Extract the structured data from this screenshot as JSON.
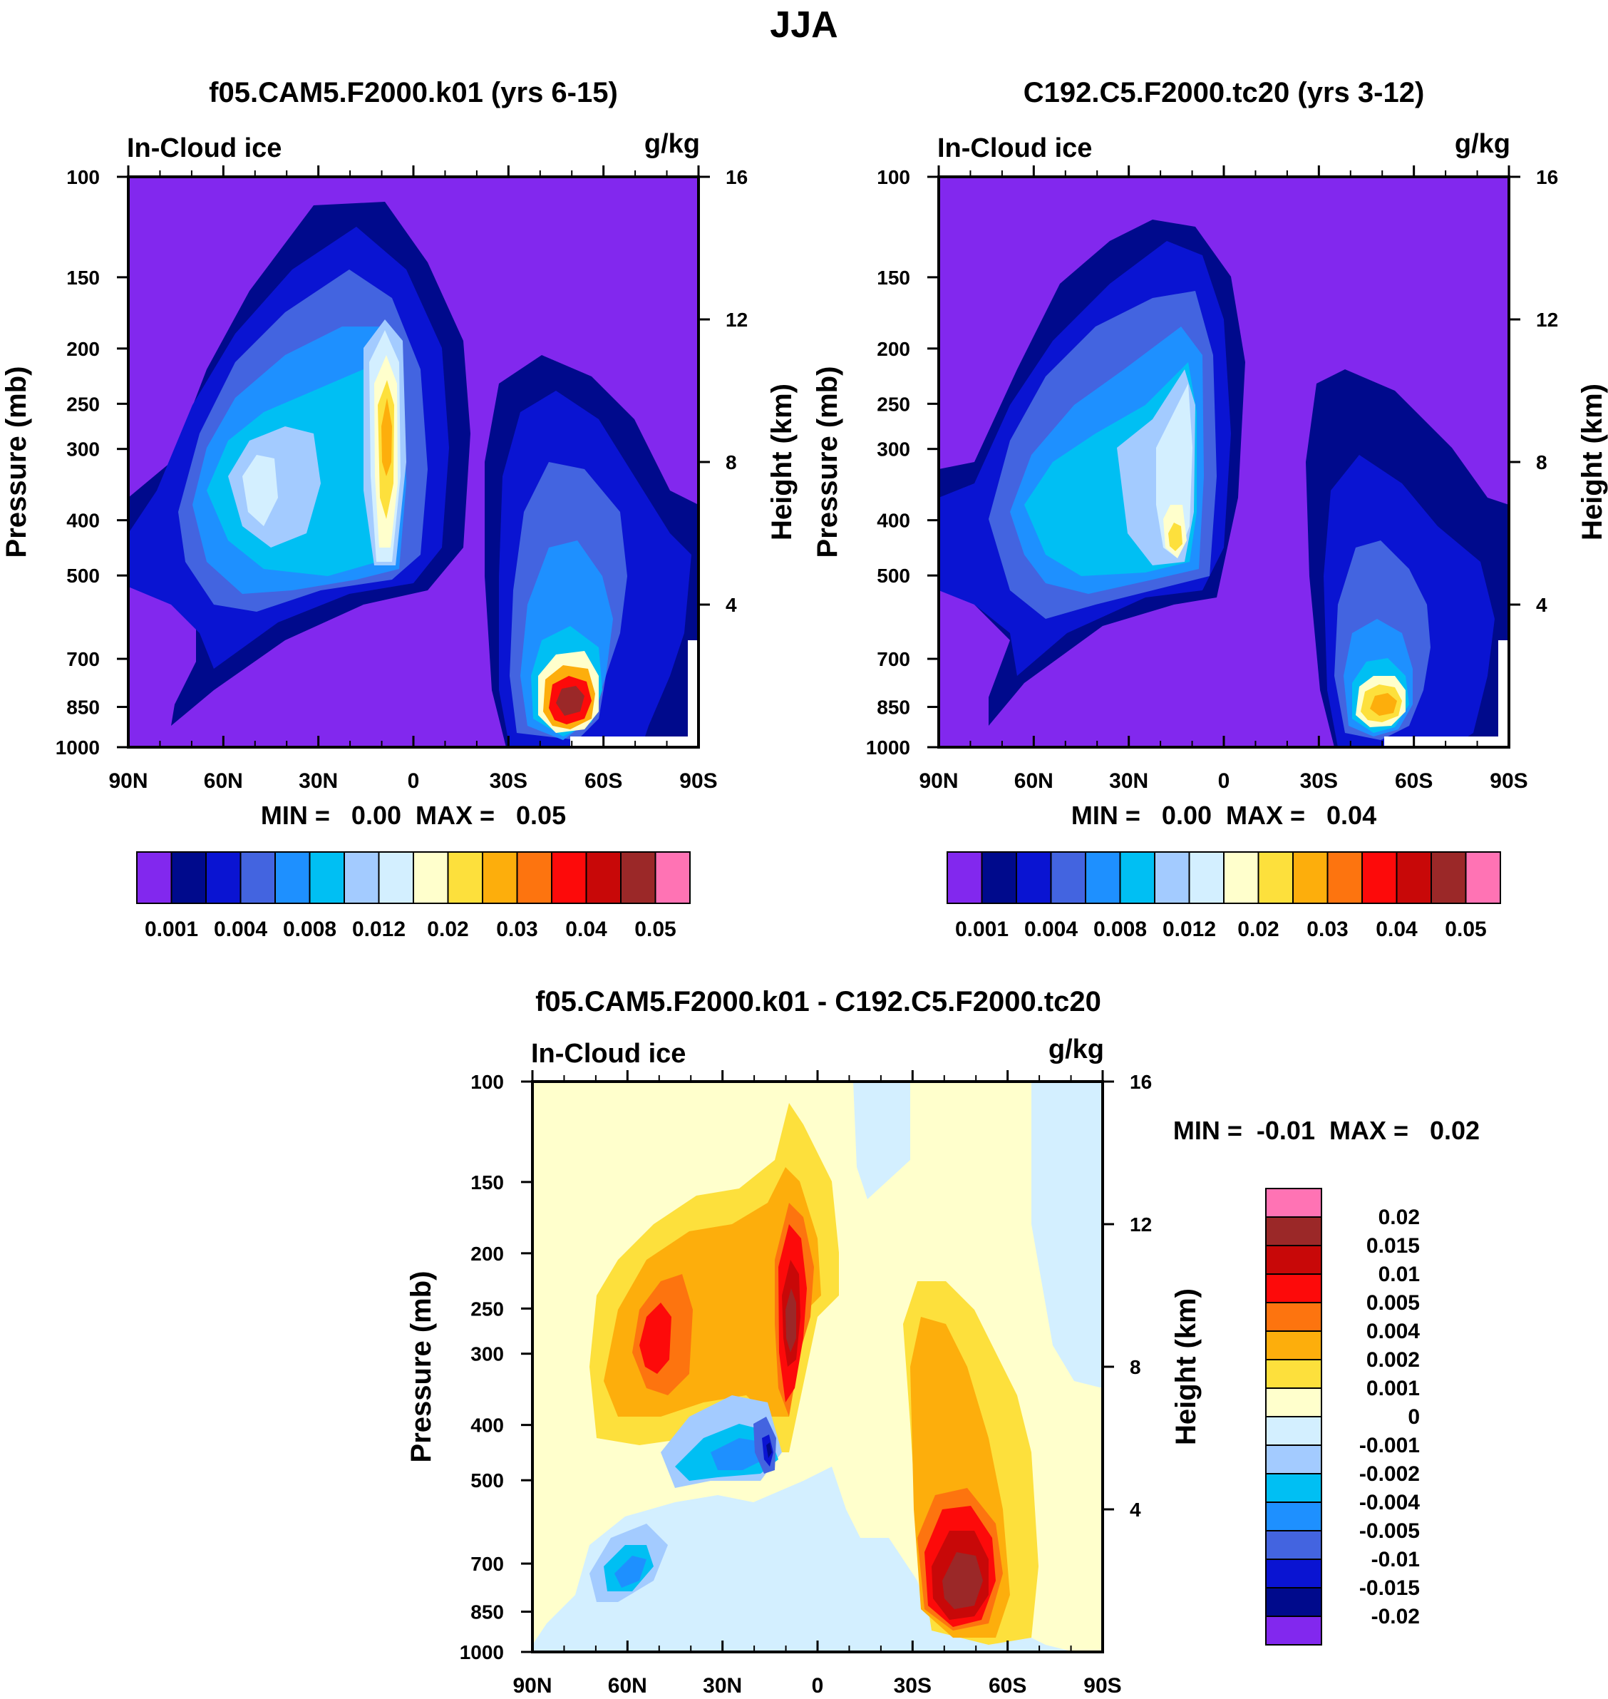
{
  "figure": {
    "title": "JJA"
  },
  "chart_data": [
    {
      "type": "heatmap",
      "id": "panel1",
      "title": "f05.CAM5.F2000.k01 (yrs 6-15)",
      "left_label": "In-Cloud ice",
      "units": "g/kg",
      "ylabel": "Pressure (mb)",
      "ylabel_right": "Height (km)",
      "x_ticks": [
        "90N",
        "60N",
        "30N",
        "0",
        "30S",
        "60S",
        "90S"
      ],
      "x_range": [
        90,
        -90
      ],
      "pressure_ticks": [
        100,
        150,
        200,
        250,
        300,
        400,
        500,
        700,
        850,
        1000
      ],
      "height_ticks": [
        16,
        12,
        8,
        4
      ],
      "min_max_label": "MIN =   0.00  MAX =   0.05",
      "min": 0.0,
      "max": 0.05,
      "levels": [
        "0.001",
        "0.004",
        "0.008",
        "0.012",
        "0.02",
        "0.03",
        "0.04",
        "0.05"
      ],
      "colors": [
        "#8228ee",
        "#000a8c",
        "#0a14d2",
        "#4364e0",
        "#1e90ff",
        "#00bff3",
        "#a3cbff",
        "#d3efff",
        "#ffffcc",
        "#fde03c",
        "#fdae0c",
        "#fd740f",
        "#fd0a0a",
        "#c80808",
        "#9b2828",
        "#ff73b4"
      ],
      "features": [
        {
          "region": "NH tropics upper column",
          "lat": 8,
          "pressure": 300,
          "value": 0.03
        },
        {
          "region": "NH midlatitudes",
          "lat": 50,
          "pressure": 360,
          "value": 0.012
        },
        {
          "region": "SH midlatitudes low level",
          "lat": -50,
          "pressure": 830,
          "value": 0.05
        }
      ]
    },
    {
      "type": "heatmap",
      "id": "panel2",
      "title": "C192.C5.F2000.tc20 (yrs 3-12)",
      "left_label": "In-Cloud ice",
      "units": "g/kg",
      "ylabel": "Pressure (mb)",
      "ylabel_right": "Height (km)",
      "x_ticks": [
        "90N",
        "60N",
        "30N",
        "0",
        "30S",
        "60S",
        "90S"
      ],
      "x_range": [
        90,
        -90
      ],
      "pressure_ticks": [
        100,
        150,
        200,
        250,
        300,
        400,
        500,
        700,
        850,
        1000
      ],
      "height_ticks": [
        16,
        12,
        8,
        4
      ],
      "min_max_label": "MIN =   0.00  MAX =   0.04",
      "min": 0.0,
      "max": 0.04,
      "levels": [
        "0.001",
        "0.004",
        "0.008",
        "0.012",
        "0.02",
        "0.03",
        "0.04",
        "0.05"
      ],
      "colors": [
        "#8228ee",
        "#000a8c",
        "#0a14d2",
        "#4364e0",
        "#1e90ff",
        "#00bff3",
        "#a3cbff",
        "#d3efff",
        "#ffffcc",
        "#fde03c",
        "#fdae0c",
        "#fd740f",
        "#fd0a0a",
        "#c80808",
        "#9b2828",
        "#ff73b4"
      ],
      "features": [
        {
          "region": "NH tropics mid column",
          "lat": 12,
          "pressure": 480,
          "value": 0.02
        },
        {
          "region": "NH midlatitudes",
          "lat": 45,
          "pressure": 400,
          "value": 0.012
        },
        {
          "region": "SH midlatitudes low level",
          "lat": -50,
          "pressure": 830,
          "value": 0.03
        }
      ]
    },
    {
      "type": "heatmap",
      "id": "panel3",
      "title": "f05.CAM5.F2000.k01 - C192.C5.F2000.tc20",
      "left_label": "In-Cloud ice",
      "units": "g/kg",
      "ylabel": "Pressure (mb)",
      "ylabel_right": "Height (km)",
      "x_ticks": [
        "90N",
        "60N",
        "30N",
        "0",
        "30S",
        "60S",
        "90S"
      ],
      "x_range": [
        90,
        -90
      ],
      "pressure_ticks": [
        100,
        150,
        200,
        250,
        300,
        400,
        500,
        700,
        850,
        1000
      ],
      "height_ticks": [
        16,
        12,
        8,
        4
      ],
      "min_max_label": "MIN =  -0.01  MAX =   0.02",
      "min": -0.01,
      "max": 0.02,
      "levels": [
        "0.02",
        "0.015",
        "0.01",
        "0.005",
        "0.004",
        "0.002",
        "0.001",
        "0",
        "-0.001",
        "-0.002",
        "-0.004",
        "-0.005",
        "-0.01",
        "-0.015",
        "-0.02"
      ],
      "colors": [
        "#ff73b4",
        "#9b2828",
        "#c80808",
        "#fd0a0a",
        "#fd740f",
        "#fdae0c",
        "#fde03c",
        "#ffffcc",
        "#d3efff",
        "#a3cbff",
        "#00bff3",
        "#1e90ff",
        "#4364e0",
        "#0a14d2",
        "#000a8c",
        "#8228ee"
      ],
      "features": [
        {
          "region": "NH tropics upper column",
          "lat": 6,
          "pressure": 280,
          "value": 0.015
        },
        {
          "region": "NH subtropics",
          "lat": 50,
          "pressure": 330,
          "value": 0.005
        },
        {
          "region": "NH tropics mid level",
          "lat": 15,
          "pressure": 500,
          "value": -0.01
        },
        {
          "region": "SH midlatitudes low level",
          "lat": -47,
          "pressure": 760,
          "value": 0.015
        }
      ]
    }
  ]
}
